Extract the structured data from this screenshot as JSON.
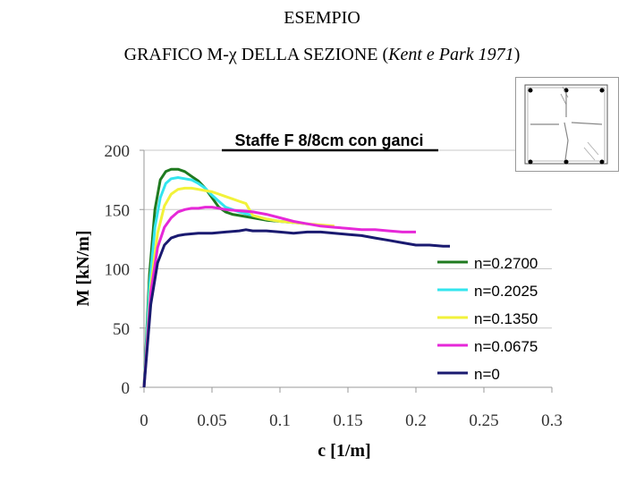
{
  "header": {
    "title_line1": "ESEMPIO",
    "title_line2_prefix": "GRAFICO M-χ DELLA SEZIONE (",
    "title_line2_italic": "Kent e Park 1971",
    "title_line2_suffix": ")"
  },
  "chart_data": {
    "type": "line",
    "title": "Staffe F 8/8cm con ganci",
    "xlabel": "c  [1/m]",
    "ylabel": "M [kN/m]",
    "xlim": [
      0,
      0.3
    ],
    "ylim": [
      0,
      200
    ],
    "xticks": [
      0,
      0.05,
      0.1,
      0.15,
      0.2,
      0.25,
      0.3
    ],
    "xtick_labels": [
      "0",
      "0.05",
      "0.1",
      "0.15",
      "0.2",
      "0.25",
      "0.3"
    ],
    "yticks": [
      0,
      50,
      100,
      150,
      200
    ],
    "ytick_labels": [
      "0",
      "50",
      "100",
      "150",
      "200"
    ],
    "grid": "horizontal",
    "legend_position": "right",
    "series": [
      {
        "name": "n=0.2700",
        "color": "#1f7a1f",
        "x": [
          0,
          0.004,
          0.008,
          0.012,
          0.016,
          0.02,
          0.025,
          0.03,
          0.035,
          0.04,
          0.045,
          0.05,
          0.055,
          0.06,
          0.065,
          0.07,
          0.08,
          0.09,
          0.1,
          0.11
        ],
        "y": [
          0,
          95,
          150,
          175,
          182,
          184,
          184,
          182,
          178,
          174,
          168,
          160,
          152,
          148,
          146,
          145,
          143,
          141,
          140,
          139
        ]
      },
      {
        "name": "n=0.2025",
        "color": "#33e5ee",
        "x": [
          0,
          0.004,
          0.008,
          0.012,
          0.016,
          0.02,
          0.025,
          0.03,
          0.035,
          0.04,
          0.045,
          0.05,
          0.055,
          0.06,
          0.065,
          0.07,
          0.08,
          0.09,
          0.1,
          0.11,
          0.12
        ],
        "y": [
          0,
          85,
          135,
          160,
          172,
          176,
          177,
          176,
          175,
          172,
          168,
          162,
          157,
          152,
          150,
          148,
          145,
          142,
          140,
          139,
          138
        ]
      },
      {
        "name": "n=0.1350",
        "color": "#f2f23a",
        "x": [
          0,
          0.005,
          0.01,
          0.015,
          0.02,
          0.025,
          0.03,
          0.035,
          0.04,
          0.045,
          0.05,
          0.055,
          0.06,
          0.065,
          0.07,
          0.075,
          0.08,
          0.09,
          0.1,
          0.11,
          0.12,
          0.13,
          0.14
        ],
        "y": [
          0,
          85,
          130,
          153,
          163,
          167,
          168,
          168,
          167,
          166,
          165,
          163,
          161,
          159,
          157,
          155,
          145,
          142,
          140,
          139,
          138,
          137,
          136
        ]
      },
      {
        "name": "n=0.0675",
        "color": "#e628d8",
        "x": [
          0,
          0.005,
          0.01,
          0.015,
          0.02,
          0.025,
          0.03,
          0.035,
          0.04,
          0.045,
          0.05,
          0.055,
          0.06,
          0.07,
          0.08,
          0.09,
          0.1,
          0.11,
          0.12,
          0.13,
          0.14,
          0.15,
          0.16,
          0.17,
          0.18,
          0.19,
          0.2
        ],
        "y": [
          0,
          80,
          118,
          135,
          143,
          148,
          150,
          151,
          151,
          152,
          152,
          151,
          150,
          149,
          148,
          146,
          143,
          140,
          138,
          136,
          135,
          134,
          133,
          133,
          132,
          131,
          131
        ]
      },
      {
        "name": "n=0",
        "color": "#1a1a70",
        "x": [
          0,
          0.005,
          0.01,
          0.015,
          0.02,
          0.025,
          0.03,
          0.04,
          0.05,
          0.06,
          0.07,
          0.075,
          0.08,
          0.09,
          0.1,
          0.11,
          0.12,
          0.13,
          0.14,
          0.15,
          0.16,
          0.17,
          0.18,
          0.19,
          0.2,
          0.21,
          0.22,
          0.225
        ],
        "y": [
          0,
          70,
          105,
          120,
          126,
          128,
          129,
          130,
          130,
          131,
          132,
          133,
          132,
          132,
          131,
          130,
          131,
          131,
          130,
          129,
          128,
          126,
          124,
          122,
          120,
          120,
          119,
          119
        ]
      }
    ]
  }
}
